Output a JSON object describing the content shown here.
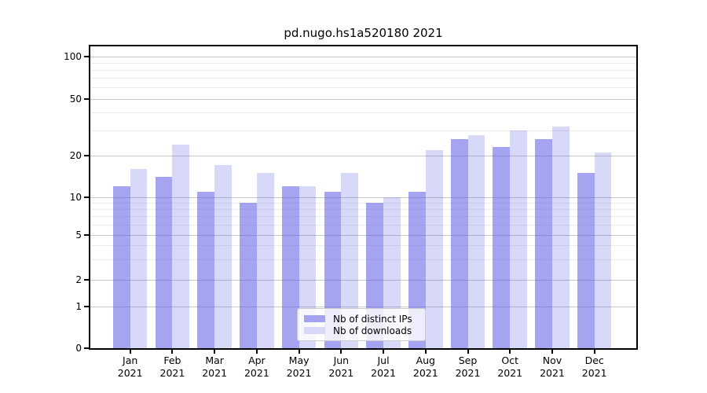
{
  "page": {
    "background": "#ffffff"
  },
  "chart_data": {
    "type": "bar",
    "title": "pd.nugo.hs1a520180 2021",
    "year": "2021",
    "categories": [
      "Jan",
      "Feb",
      "Mar",
      "Apr",
      "May",
      "Jun",
      "Jul",
      "Aug",
      "Sep",
      "Oct",
      "Nov",
      "Dec"
    ],
    "series": [
      {
        "name": "Nb of distinct IPs",
        "color": "#a4a4f0",
        "fill": "rgba(95,95,230,0.57)",
        "values": [
          12,
          14,
          11,
          9,
          12,
          11,
          9,
          11,
          26,
          23,
          26,
          15
        ]
      },
      {
        "name": "Nb of downloads",
        "color": "#d8d8f8",
        "fill": "rgba(95,95,230,0.245)",
        "values": [
          16,
          24,
          17,
          15,
          12,
          15,
          10,
          22,
          28,
          30,
          32,
          21
        ]
      }
    ],
    "yscale": "log",
    "ylim": [
      0,
      100
    ],
    "yticks": [
      100,
      50,
      20,
      10,
      5,
      2,
      1,
      0
    ],
    "minor_gridlines": [
      3,
      4,
      6,
      7,
      8,
      9,
      30,
      40,
      60,
      70,
      80,
      90
    ],
    "grid": true,
    "legend_position": "lower center",
    "axis_color": "#000000",
    "major_grid_color": "#c6c6c6",
    "minor_grid_color": "#ececec"
  }
}
